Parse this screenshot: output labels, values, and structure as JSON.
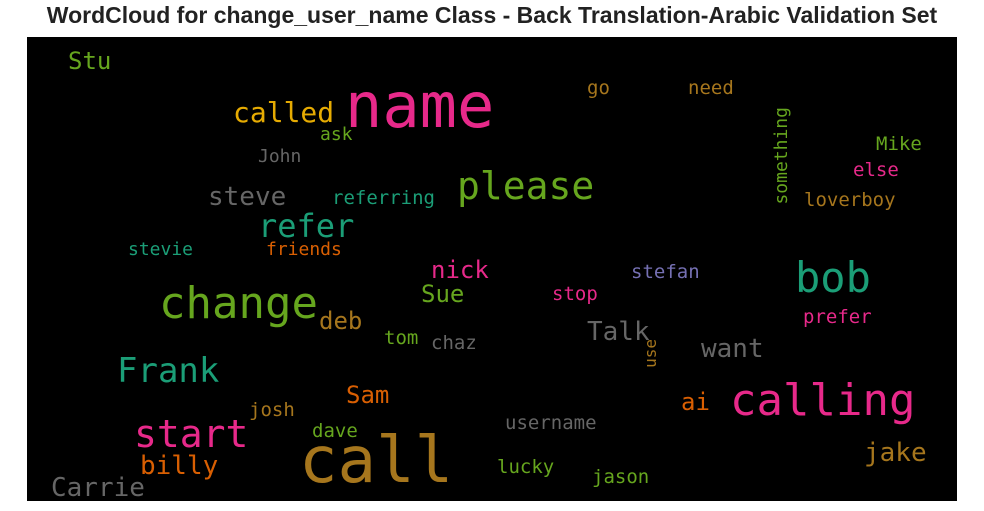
{
  "title": "WordCloud for change_user_name Class - Back Translation-Arabic Validation Set",
  "words": [
    {
      "text": "name",
      "color": "#e7298a"
    },
    {
      "text": "call",
      "color": "#a6761d"
    },
    {
      "text": "calling",
      "color": "#e7298a"
    },
    {
      "text": "change",
      "color": "#66a61e"
    },
    {
      "text": "bob",
      "color": "#1b9e77"
    },
    {
      "text": "please",
      "color": "#66a61e"
    },
    {
      "text": "refer",
      "color": "#1b9e77"
    },
    {
      "text": "start",
      "color": "#e7298a"
    },
    {
      "text": "Frank",
      "color": "#1b9e77"
    },
    {
      "text": "called",
      "color": "#e6ab02"
    },
    {
      "text": "steve",
      "color": "#666666"
    },
    {
      "text": "Stu",
      "color": "#66a61e"
    },
    {
      "text": "nick",
      "color": "#e7298a"
    },
    {
      "text": "Sue",
      "color": "#66a61e"
    },
    {
      "text": "deb",
      "color": "#a6761d"
    },
    {
      "text": "Talk",
      "color": "#666666"
    },
    {
      "text": "want",
      "color": "#666666"
    },
    {
      "text": "Sam",
      "color": "#d95f02"
    },
    {
      "text": "ai",
      "color": "#d95f02"
    },
    {
      "text": "billy",
      "color": "#d95f02"
    },
    {
      "text": "Carrie",
      "color": "#666666"
    },
    {
      "text": "jake",
      "color": "#a6761d"
    },
    {
      "text": "go",
      "color": "#a6761d"
    },
    {
      "text": "need",
      "color": "#a6761d"
    },
    {
      "text": "ask",
      "color": "#66a61e"
    },
    {
      "text": "John",
      "color": "#666666"
    },
    {
      "text": "something",
      "color": "#66a61e"
    },
    {
      "text": "Mike",
      "color": "#66a61e"
    },
    {
      "text": "else",
      "color": "#e7298a"
    },
    {
      "text": "loverboy",
      "color": "#a6761d"
    },
    {
      "text": "referring",
      "color": "#1b9e77"
    },
    {
      "text": "stevie",
      "color": "#1b9e77"
    },
    {
      "text": "friends",
      "color": "#d95f02"
    },
    {
      "text": "stefan",
      "color": "#7570b3"
    },
    {
      "text": "stop",
      "color": "#e7298a"
    },
    {
      "text": "prefer",
      "color": "#e7298a"
    },
    {
      "text": "tom",
      "color": "#66a61e"
    },
    {
      "text": "chaz",
      "color": "#666666"
    },
    {
      "text": "use",
      "color": "#a6761d"
    },
    {
      "text": "josh",
      "color": "#a6761d"
    },
    {
      "text": "dave",
      "color": "#66a61e"
    },
    {
      "text": "username",
      "color": "#666666"
    },
    {
      "text": "lucky",
      "color": "#66a61e"
    },
    {
      "text": "jason",
      "color": "#66a61e"
    }
  ]
}
